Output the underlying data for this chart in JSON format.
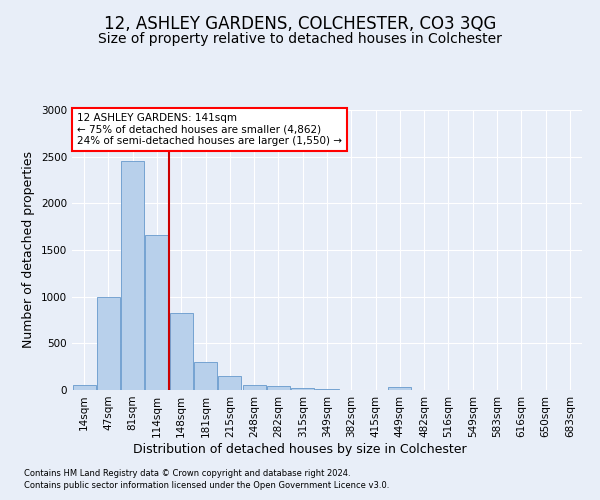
{
  "title": "12, ASHLEY GARDENS, COLCHESTER, CO3 3QG",
  "subtitle": "Size of property relative to detached houses in Colchester",
  "xlabel": "Distribution of detached houses by size in Colchester",
  "ylabel": "Number of detached properties",
  "footnote1": "Contains HM Land Registry data © Crown copyright and database right 2024.",
  "footnote2": "Contains public sector information licensed under the Open Government Licence v3.0.",
  "annotation_line1": "12 ASHLEY GARDENS: 141sqm",
  "annotation_line2": "← 75% of detached houses are smaller (4,862)",
  "annotation_line3": "24% of semi-detached houses are larger (1,550) →",
  "bar_labels": [
    "14sqm",
    "47sqm",
    "81sqm",
    "114sqm",
    "148sqm",
    "181sqm",
    "215sqm",
    "248sqm",
    "282sqm",
    "315sqm",
    "349sqm",
    "382sqm",
    "415sqm",
    "449sqm",
    "482sqm",
    "516sqm",
    "549sqm",
    "583sqm",
    "616sqm",
    "650sqm",
    "683sqm"
  ],
  "bar_values": [
    50,
    1000,
    2450,
    1660,
    830,
    300,
    150,
    55,
    40,
    25,
    8,
    3,
    2,
    30,
    2,
    2,
    2,
    2,
    2,
    2,
    2
  ],
  "bar_color": "#b8d0eb",
  "bar_edge_color": "#6699cc",
  "red_line_x": 3.5,
  "red_line_color": "#cc0000",
  "ylim": [
    0,
    3000
  ],
  "yticks": [
    0,
    500,
    1000,
    1500,
    2000,
    2500,
    3000
  ],
  "background_color": "#e8eef8",
  "grid_color": "#ffffff",
  "title_fontsize": 12,
  "subtitle_fontsize": 10,
  "xlabel_fontsize": 9,
  "ylabel_fontsize": 9,
  "tick_fontsize": 7.5,
  "annot_fontsize": 7.5,
  "footnote_fontsize": 6
}
